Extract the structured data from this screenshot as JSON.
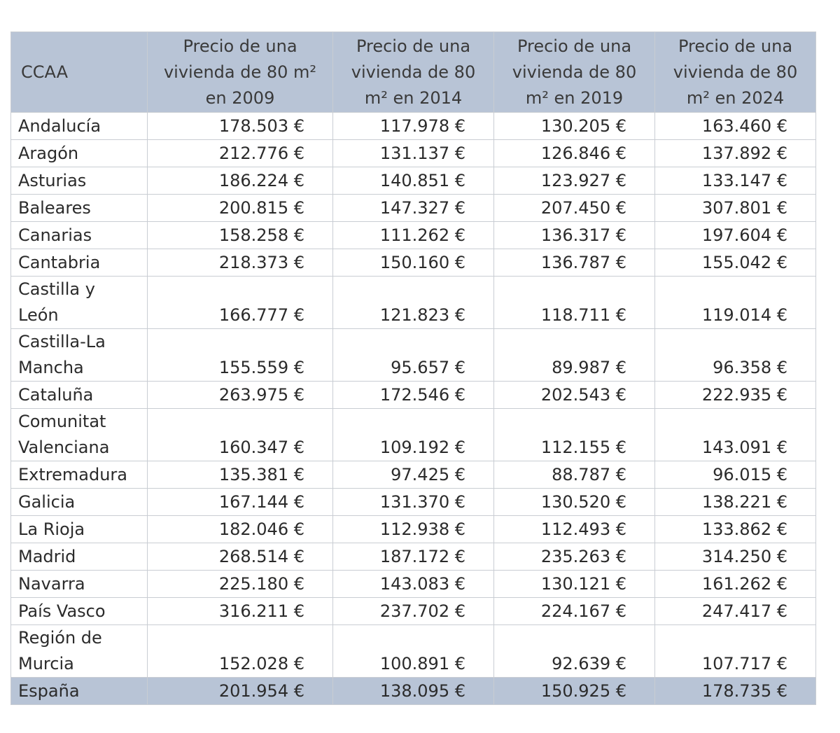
{
  "table": {
    "header": [
      "CCAA",
      "Precio de una vivienda de 80 m² en 2009",
      "Precio de una vivienda de 80 m² en 2014",
      "Precio de una vivienda de 80 m² en 2019",
      "Precio de una vivienda de 80 m² en 2024"
    ],
    "rows": [
      [
        "Andalucía",
        "178.503 €",
        "117.978 €",
        "130.205 €",
        "163.460 €"
      ],
      [
        "Aragón",
        "212.776 €",
        "131.137 €",
        "126.846 €",
        "137.892 €"
      ],
      [
        "Asturias",
        "186.224 €",
        "140.851 €",
        "123.927 €",
        "133.147 €"
      ],
      [
        "Baleares",
        "200.815 €",
        "147.327 €",
        "207.450 €",
        "307.801 €"
      ],
      [
        "Canarias",
        "158.258 €",
        "111.262 €",
        "136.317 €",
        "197.604 €"
      ],
      [
        "Cantabria",
        "218.373 €",
        "150.160 €",
        "136.787 €",
        "155.042 €"
      ],
      [
        "Castilla y León",
        "166.777 €",
        "121.823 €",
        "118.711 €",
        "119.014 €"
      ],
      [
        "Castilla-La Mancha",
        "155.559 €",
        "95.657 €",
        "89.987 €",
        "96.358 €"
      ],
      [
        "Cataluña",
        "263.975 €",
        "172.546 €",
        "202.543 €",
        "222.935 €"
      ],
      [
        "Comunitat Valenciana",
        "160.347 €",
        "109.192 €",
        "112.155 €",
        "143.091 €"
      ],
      [
        "Extremadura",
        "135.381 €",
        "97.425 €",
        "88.787 €",
        "96.015 €"
      ],
      [
        "Galicia",
        "167.144 €",
        "131.370 €",
        "130.520 €",
        "138.221 €"
      ],
      [
        "La Rioja",
        "182.046 €",
        "112.938 €",
        "112.493 €",
        "133.862 €"
      ],
      [
        "Madrid",
        "268.514 €",
        "187.172 €",
        "235.263 €",
        "314.250 €"
      ],
      [
        "Navarra",
        "225.180 €",
        "143.083 €",
        "130.121 €",
        "161.262 €"
      ],
      [
        "País Vasco",
        "316.211 €",
        "237.702 €",
        "224.167 €",
        "247.417 €"
      ],
      [
        "Región de Murcia",
        "152.028 €",
        "100.891 €",
        "92.639 €",
        "107.717 €"
      ],
      [
        "España",
        "201.954 €",
        "138.095 €",
        "150.925 €",
        "178.735 €"
      ]
    ]
  }
}
